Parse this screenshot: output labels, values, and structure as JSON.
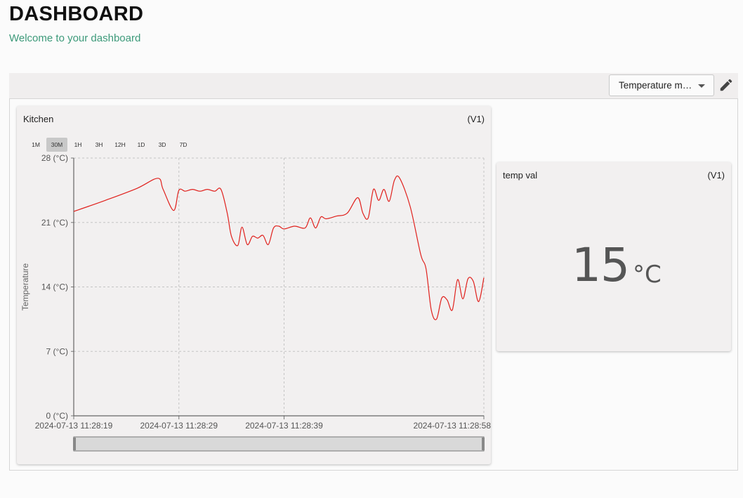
{
  "header": {
    "title": "DASHBOARD",
    "subtitle": "Welcome to your dashboard"
  },
  "toolbar": {
    "dashboard_select": "Temperature m…"
  },
  "widgets": {
    "chart": {
      "title": "Kitchen",
      "pin": "(V1)",
      "ranges": [
        "1M",
        "30M",
        "1H",
        "3H",
        "12H",
        "1D",
        "3D",
        "7D"
      ],
      "active_range": "30M"
    },
    "value": {
      "title": "temp val",
      "pin": "(V1)",
      "value": "15",
      "unit": "°C"
    }
  },
  "colors": {
    "line": "#e0201c",
    "accent": "#3d9a7a"
  },
  "chart_data": {
    "type": "line",
    "title": "Kitchen",
    "ylabel": "Temperature",
    "xlabel": "",
    "ylim": [
      0,
      28
    ],
    "xlim": [
      "2024-07-13 11:28:19",
      "2024-07-13 11:28:58"
    ],
    "yticks": [
      0,
      7,
      14,
      21,
      28
    ],
    "ytick_labels": [
      "0 (°C)",
      "7 (°C)",
      "14 (°C)",
      "21 (°C)",
      "28 (°C)"
    ],
    "xticks": [
      "2024-07-13 11:28:19",
      "2024-07-13 11:28:29",
      "2024-07-13 11:28:39",
      "2024-07-13 11:28:58"
    ],
    "grid": true,
    "series": [
      {
        "x": [
          "2024-07-13 11:28:19",
          "2024-07-13 11:28:22",
          "2024-07-13 11:28:25",
          "2024-07-13 11:28:27",
          "2024-07-13 11:28:27.5",
          "2024-07-13 11:28:28.5",
          "2024-07-13 11:28:29",
          "2024-07-13 11:28:29.6",
          "2024-07-13 11:28:30.3",
          "2024-07-13 11:28:31",
          "2024-07-13 11:28:31.7",
          "2024-07-13 11:28:32.4",
          "2024-07-13 11:28:33",
          "2024-07-13 11:28:33.6",
          "2024-07-13 11:28:34",
          "2024-07-13 11:28:34.6",
          "2024-07-13 11:28:35",
          "2024-07-13 11:28:35.5",
          "2024-07-13 11:28:36",
          "2024-07-13 11:28:36.5",
          "2024-07-13 11:28:37",
          "2024-07-13 11:28:37.5",
          "2024-07-13 11:28:38",
          "2024-07-13 11:28:38.5",
          "2024-07-13 11:28:39",
          "2024-07-13 11:28:40",
          "2024-07-13 11:28:41",
          "2024-07-13 11:28:41.5",
          "2024-07-13 11:28:42",
          "2024-07-13 11:28:42.5",
          "2024-07-13 11:28:43",
          "2024-07-13 11:28:44",
          "2024-07-13 11:28:45",
          "2024-07-13 11:28:46",
          "2024-07-13 11:28:46.5",
          "2024-07-13 11:28:47",
          "2024-07-13 11:28:47.5",
          "2024-07-13 11:28:48",
          "2024-07-13 11:28:48.5",
          "2024-07-13 11:28:49",
          "2024-07-13 11:28:49.5",
          "2024-07-13 11:28:50",
          "2024-07-13 11:28:51",
          "2024-07-13 11:28:52",
          "2024-07-13 11:28:52.5",
          "2024-07-13 11:28:53",
          "2024-07-13 11:28:53.5",
          "2024-07-13 11:28:54",
          "2024-07-13 11:28:54.5",
          "2024-07-13 11:28:55",
          "2024-07-13 11:28:55.5",
          "2024-07-13 11:28:56",
          "2024-07-13 11:28:56.5",
          "2024-07-13 11:28:57",
          "2024-07-13 11:28:57.5",
          "2024-07-13 11:28:58"
        ],
        "y": [
          22.2,
          23.4,
          24.7,
          25.8,
          24.6,
          22.3,
          24.5,
          24.4,
          24.6,
          24.4,
          24.6,
          24.4,
          24.6,
          22.0,
          19.5,
          18.5,
          20.5,
          18.6,
          19.5,
          19.3,
          19.6,
          18.6,
          20.4,
          20.6,
          20.3,
          20.6,
          20.4,
          21.5,
          20.4,
          21.6,
          21.4,
          21.7,
          22.0,
          23.7,
          22.0,
          21.5,
          24.6,
          23.4,
          24.6,
          23.3,
          25.6,
          25.8,
          22.7,
          17.5,
          16.0,
          11.5,
          10.5,
          12.8,
          12.6,
          11.5,
          14.8,
          12.7,
          14.9,
          14.6,
          12.4,
          15.0
        ]
      }
    ]
  }
}
